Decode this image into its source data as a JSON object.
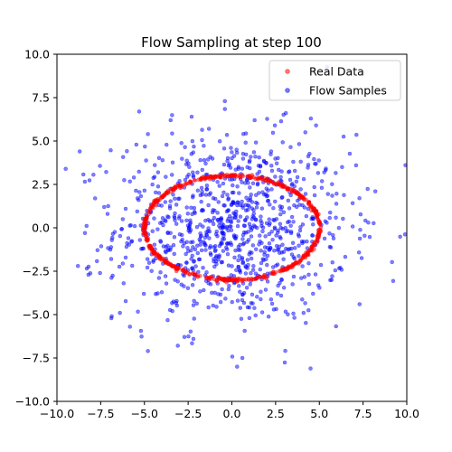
{
  "chart_data": {
    "type": "scatter",
    "title": "Flow Sampling at step 100",
    "xlabel": "",
    "ylabel": "",
    "xlim": [
      -10,
      10
    ],
    "ylim": [
      -10,
      10
    ],
    "xticks": [
      -10.0,
      -7.5,
      -5.0,
      -2.5,
      0.0,
      2.5,
      5.0,
      7.5,
      10.0
    ],
    "yticks": [
      -10.0,
      -7.5,
      -5.0,
      -2.5,
      0.0,
      2.5,
      5.0,
      7.5,
      10.0
    ],
    "xtick_labels": [
      "−10.0",
      "−7.5",
      "−5.0",
      "−2.5",
      "0.0",
      "2.5",
      "5.0",
      "7.5",
      "10.0"
    ],
    "ytick_labels": [
      "−10.0",
      "−7.5",
      "−5.0",
      "−2.5",
      "0.0",
      "2.5",
      "5.0",
      "7.5",
      "10.0"
    ],
    "grid": false,
    "legend_position": "top-right",
    "series": [
      {
        "name": "Real Data",
        "color": "#ff0000",
        "shape": "ellipse",
        "center": [
          0,
          0
        ],
        "radius_x": 5,
        "radius_y": 3,
        "count": 600
      },
      {
        "name": "Flow Samples",
        "color": "#0000ff",
        "shape": "gaussian-cloud",
        "mean": [
          0,
          0
        ],
        "std_x": 3.3,
        "std_y": 2.7,
        "count": 1000,
        "points": [
          [
            -9.5,
            3.4
          ],
          [
            -8.7,
            4.4
          ],
          [
            -8.2,
            -2.7
          ],
          [
            -8.4,
            -0.3
          ],
          [
            -8.8,
            -2.2
          ],
          [
            -5.3,
            6.7
          ],
          [
            -4.8,
            5.4
          ],
          [
            -3.5,
            6.2
          ],
          [
            -2.3,
            6.4
          ],
          [
            -0.4,
            7.3
          ],
          [
            1.3,
            6.2
          ],
          [
            4.2,
            5.5
          ],
          [
            7.1,
            3.6
          ],
          [
            8.2,
            2.1
          ],
          [
            7.8,
            0.3
          ],
          [
            7.3,
            -4.4
          ],
          [
            5.7,
            -3.0
          ],
          [
            4.1,
            -4.9
          ],
          [
            1.0,
            -5.2
          ],
          [
            0.6,
            -7.5
          ],
          [
            0.3,
            -8.0
          ],
          [
            -2.2,
            -6.4
          ],
          [
            -4.8,
            -7.1
          ],
          [
            -6.4,
            -4.9
          ],
          [
            -6.9,
            -1.8
          ],
          [
            -7.3,
            1.2
          ],
          [
            6.3,
            3.5
          ],
          [
            5.6,
            -1.1
          ],
          [
            -5.6,
            2.9
          ],
          [
            -3.4,
            -4.8
          ]
        ]
      }
    ]
  }
}
